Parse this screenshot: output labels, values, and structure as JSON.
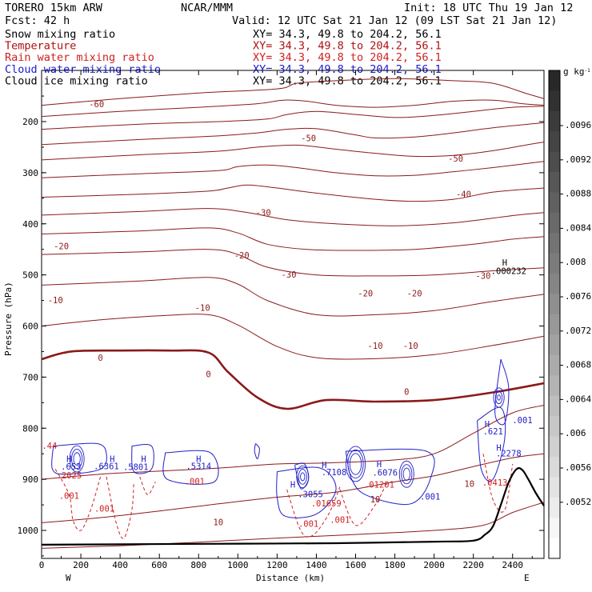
{
  "header": {
    "model": "TORERO  15km ARW",
    "org": "NCAR/MMM",
    "init": "Init: 18 UTC Thu 19 Jan 12",
    "fcst": "Fcst:   42 h",
    "valid": "Valid: 12 UTC Sat 21 Jan 12 (09 LST Sat 21 Jan 12)"
  },
  "fields": [
    {
      "label": "Snow mixing ratio",
      "xy": "XY=  34.3, 49.8 to 204.2, 56.1",
      "color": "#000000"
    },
    {
      "label": "Temperature",
      "xy": "XY=  34.3, 49.8 to 204.2, 56.1",
      "color": "#b01010"
    },
    {
      "label": "Rain water mixing ratio",
      "xy": "XY=  34.3, 49.8 to 204.2, 56.1",
      "color": "#d02020"
    },
    {
      "label": "Cloud water mixing ratio",
      "xy": "XY=  34.3, 49.8 to 204.2, 56.1",
      "color": "#1a1ad0"
    },
    {
      "label": "Cloud ice mixing ratio",
      "xy": "XY=  34.3, 49.8 to 204.2, 56.1",
      "color": "#000000"
    }
  ],
  "chart_data": {
    "type": "contour cross-section",
    "xlabel": "Distance (km)",
    "ylabel": "Pressure (hPa)",
    "xlim": [
      0,
      2560
    ],
    "ylim": [
      1050,
      100
    ],
    "xticks": [
      "0",
      "200",
      "400",
      "600",
      "800",
      "1000",
      "1200",
      "1400",
      "1600",
      "1800",
      "2000",
      "2200",
      "2400"
    ],
    "yticks": [
      "200",
      "300",
      "400",
      "500",
      "600",
      "700",
      "800",
      "900",
      "1000"
    ],
    "end_labels": {
      "left": "W",
      "right": "E"
    },
    "colorbar": {
      "unit": "g kg",
      "unit_sup": "-1",
      "ticks": [
        ".0096",
        ".0092",
        ".0088",
        ".0084",
        ".008",
        ".0076",
        ".0072",
        ".0068",
        ".0064",
        ".006",
        ".0056",
        ".0052"
      ]
    },
    "temperature_labels": [
      "-60",
      "-50",
      "-50",
      "-40",
      "-30",
      "-30",
      "-30",
      "-20",
      "-20",
      "-20",
      "-20",
      "-10",
      "-10",
      "-10",
      "-10",
      "0",
      "0",
      "0",
      "10",
      "10",
      "10"
    ],
    "temperature_contours": [
      {
        "t": -60,
        "points": [
          [
            0,
            168
          ],
          [
            400,
            155
          ],
          [
            800,
            144
          ],
          [
            1200,
            136
          ],
          [
            1300,
            125
          ],
          [
            1500,
            120
          ],
          [
            1800,
            116
          ],
          [
            2100,
            120
          ],
          [
            2300,
            125
          ],
          [
            2470,
            145
          ],
          [
            2560,
            155
          ]
        ]
      },
      {
        "t": -55,
        "points": [
          [
            0,
            190
          ],
          [
            400,
            180
          ],
          [
            800,
            172
          ],
          [
            1100,
            165
          ],
          [
            1230,
            158
          ],
          [
            1350,
            160
          ],
          [
            1500,
            168
          ],
          [
            1700,
            172
          ],
          [
            1900,
            168
          ],
          [
            2100,
            160
          ],
          [
            2300,
            158
          ],
          [
            2450,
            165
          ],
          [
            2560,
            168
          ]
        ]
      },
      {
        "t": -50,
        "points": [
          [
            0,
            215
          ],
          [
            500,
            205
          ],
          [
            900,
            200
          ],
          [
            1150,
            195
          ],
          [
            1250,
            186
          ],
          [
            1400,
            180
          ],
          [
            1600,
            186
          ],
          [
            1800,
            192
          ],
          [
            2000,
            188
          ],
          [
            2200,
            180
          ],
          [
            2400,
            172
          ],
          [
            2560,
            170
          ]
        ]
      },
      {
        "t": -45,
        "points": [
          [
            0,
            245
          ],
          [
            500,
            235
          ],
          [
            900,
            228
          ],
          [
            1100,
            222
          ],
          [
            1250,
            215
          ],
          [
            1400,
            214
          ],
          [
            1600,
            226
          ],
          [
            1700,
            232
          ],
          [
            1900,
            230
          ],
          [
            2100,
            222
          ],
          [
            2300,
            212
          ],
          [
            2560,
            202
          ]
        ]
      },
      {
        "t": -40,
        "points": [
          [
            0,
            275
          ],
          [
            500,
            265
          ],
          [
            900,
            258
          ],
          [
            1100,
            250
          ],
          [
            1300,
            246
          ],
          [
            1500,
            254
          ],
          [
            1700,
            262
          ],
          [
            1900,
            268
          ],
          [
            2100,
            266
          ],
          [
            2300,
            257
          ],
          [
            2480,
            245
          ],
          [
            2560,
            240
          ]
        ]
      },
      {
        "t": -35,
        "points": [
          [
            0,
            310
          ],
          [
            500,
            302
          ],
          [
            900,
            296
          ],
          [
            1000,
            288
          ],
          [
            1150,
            285
          ],
          [
            1300,
            290
          ],
          [
            1500,
            300
          ],
          [
            1700,
            306
          ],
          [
            1900,
            305
          ],
          [
            2100,
            298
          ],
          [
            2300,
            290
          ],
          [
            2560,
            278
          ]
        ]
      },
      {
        "t": -30,
        "points": [
          [
            0,
            348
          ],
          [
            500,
            342
          ],
          [
            850,
            336
          ],
          [
            950,
            330
          ],
          [
            1050,
            324
          ],
          [
            1200,
            330
          ],
          [
            1400,
            340
          ],
          [
            1700,
            352
          ],
          [
            1900,
            356
          ],
          [
            2100,
            352
          ],
          [
            2300,
            338
          ],
          [
            2560,
            330
          ]
        ]
      },
      {
        "t": -25,
        "points": [
          [
            0,
            383
          ],
          [
            500,
            376
          ],
          [
            850,
            370
          ],
          [
            1050,
            378
          ],
          [
            1250,
            392
          ],
          [
            1500,
            400
          ],
          [
            1800,
            404
          ],
          [
            2100,
            398
          ],
          [
            2400,
            384
          ],
          [
            2560,
            378
          ]
        ]
      },
      {
        "t": -20,
        "points": [
          [
            0,
            420
          ],
          [
            500,
            414
          ],
          [
            850,
            408
          ],
          [
            1000,
            418
          ],
          [
            1150,
            440
          ],
          [
            1350,
            450
          ],
          [
            1600,
            452
          ],
          [
            1900,
            450
          ],
          [
            2200,
            440
          ],
          [
            2400,
            430
          ],
          [
            2560,
            425
          ]
        ]
      },
      {
        "t": -15,
        "points": [
          [
            0,
            460
          ],
          [
            500,
            455
          ],
          [
            850,
            450
          ],
          [
            1000,
            460
          ],
          [
            1150,
            485
          ],
          [
            1400,
            500
          ],
          [
            1700,
            502
          ],
          [
            2000,
            500
          ],
          [
            2300,
            492
          ],
          [
            2560,
            486
          ]
        ]
      },
      {
        "t": -10,
        "points": [
          [
            0,
            520
          ],
          [
            500,
            512
          ],
          [
            850,
            505
          ],
          [
            1000,
            518
          ],
          [
            1150,
            550
          ],
          [
            1400,
            578
          ],
          [
            1700,
            578
          ],
          [
            2000,
            570
          ],
          [
            2300,
            552
          ],
          [
            2560,
            538
          ]
        ]
      },
      {
        "t": -5,
        "points": [
          [
            0,
            600
          ],
          [
            300,
            588
          ],
          [
            600,
            580
          ],
          [
            850,
            578
          ],
          [
            1000,
            598
          ],
          [
            1200,
            640
          ],
          [
            1400,
            662
          ],
          [
            1700,
            664
          ],
          [
            2000,
            656
          ],
          [
            2300,
            638
          ],
          [
            2560,
            620
          ]
        ]
      },
      {
        "t": 0,
        "points": [
          [
            0,
            665
          ],
          [
            150,
            650
          ],
          [
            400,
            648
          ],
          [
            650,
            648
          ],
          [
            850,
            652
          ],
          [
            950,
            690
          ],
          [
            1100,
            740
          ],
          [
            1250,
            762
          ],
          [
            1450,
            745
          ],
          [
            1700,
            748
          ],
          [
            2000,
            745
          ],
          [
            2300,
            730
          ],
          [
            2560,
            712
          ]
        ]
      },
      {
        "t": 5,
        "points": [
          [
            0,
            900
          ],
          [
            300,
            890
          ],
          [
            600,
            884
          ],
          [
            900,
            878
          ],
          [
            1200,
            870
          ],
          [
            1450,
            868
          ],
          [
            1800,
            862
          ],
          [
            2000,
            850
          ],
          [
            2200,
            810
          ],
          [
            2400,
            770
          ],
          [
            2560,
            755
          ]
        ]
      },
      {
        "t": 10,
        "points": [
          [
            0,
            985
          ],
          [
            300,
            975
          ],
          [
            600,
            962
          ],
          [
            900,
            948
          ],
          [
            1200,
            935
          ],
          [
            1500,
            925
          ],
          [
            1800,
            905
          ],
          [
            2000,
            893
          ],
          [
            2200,
            875
          ],
          [
            2400,
            858
          ],
          [
            2560,
            850
          ]
        ]
      },
      {
        "t": 15,
        "points": [
          [
            0,
            1035
          ],
          [
            400,
            1030
          ],
          [
            800,
            1023
          ],
          [
            1200,
            1015
          ],
          [
            1600,
            1008
          ],
          [
            2000,
            1000
          ],
          [
            2250,
            990
          ],
          [
            2400,
            965
          ],
          [
            2560,
            945
          ]
        ]
      }
    ],
    "terrain": [
      [
        0,
        1028
      ],
      [
        500,
        1027
      ],
      [
        1000,
        1026
      ],
      [
        1500,
        1025
      ],
      [
        2000,
        1022
      ],
      [
        2200,
        1020
      ],
      [
        2260,
        1008
      ],
      [
        2300,
        992
      ],
      [
        2340,
        950
      ],
      [
        2380,
        906
      ],
      [
        2420,
        880
      ],
      [
        2450,
        882
      ],
      [
        2480,
        900
      ],
      [
        2520,
        928
      ],
      [
        2560,
        952
      ]
    ],
    "cloud_water_labels": [
      ".653",
      ".6361",
      ".5801",
      ".5314",
      ".3055",
      ".7108",
      ".6076",
      ".621",
      ".2278",
      ".001",
      ".001"
    ],
    "cloud_water_extrema_labels": [
      "H",
      "H",
      "H",
      "H",
      "H",
      "H",
      "H",
      "H",
      "H"
    ],
    "rain_water_labels": [
      ".001",
      ".001",
      ".001",
      ".001",
      ".001",
      ".01659",
      ".01201",
      ".0413",
      ".2025",
      ".44"
    ],
    "snow_extremum": {
      "label": "H",
      "value": ".000232"
    }
  }
}
